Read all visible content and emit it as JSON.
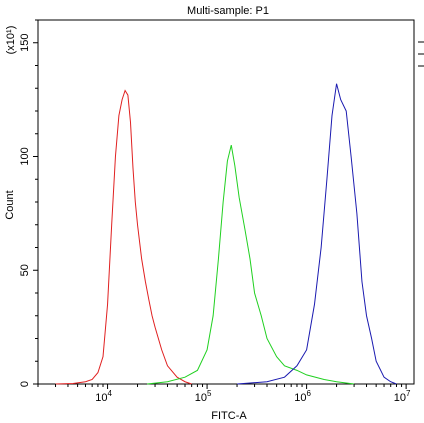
{
  "chart_data": {
    "type": "line",
    "title": "Multi-sample: P1",
    "xlabel": "FITC-A",
    "ylabel": "Count",
    "y_multiplier_label": "(x10¹)",
    "x_scale": "log",
    "xlim": [
      2000,
      12000000
    ],
    "ylim": [
      0,
      160
    ],
    "x_ticks": [
      {
        "value": 10000,
        "base": "10",
        "exp": "4"
      },
      {
        "value": 100000,
        "base": "10",
        "exp": "5"
      },
      {
        "value": 1000000,
        "base": "10",
        "exp": "6"
      },
      {
        "value": 10000000,
        "base": "10",
        "exp": "7"
      }
    ],
    "y_ticks": [
      {
        "value": 0,
        "label": "0"
      },
      {
        "value": 50,
        "label": "50"
      },
      {
        "value": 100,
        "label": "100"
      },
      {
        "value": 150,
        "label": "150"
      }
    ],
    "grid": false,
    "legend": "top-right",
    "series": [
      {
        "color": "#e02020",
        "x": [
          3000,
          4500,
          6000,
          7000,
          8000,
          9000,
          10000,
          11000,
          12000,
          13000,
          14000,
          15000,
          16000,
          17000,
          18000,
          19000,
          20000,
          22000,
          24000,
          26000,
          28000,
          30000,
          35000,
          40000,
          50000,
          60000,
          70000
        ],
        "y": [
          0,
          0.2,
          1,
          2,
          5,
          12,
          35,
          70,
          100,
          118,
          125,
          129,
          127,
          115,
          95,
          80,
          70,
          55,
          45,
          37,
          30,
          25,
          15,
          8,
          3,
          1,
          0
        ]
      },
      {
        "color": "#20d020",
        "x": [
          25000,
          40000,
          60000,
          80000,
          100000,
          115000,
          130000,
          145000,
          160000,
          175000,
          190000,
          210000,
          240000,
          270000,
          300000,
          350000,
          400000,
          500000,
          600000,
          800000,
          1000000,
          1500000,
          2000000,
          3000000
        ],
        "y": [
          0,
          1,
          3,
          6,
          15,
          30,
          55,
          80,
          98,
          105,
          96,
          82,
          68,
          55,
          40,
          30,
          20,
          12,
          8,
          6,
          4,
          2,
          1,
          0
        ]
      },
      {
        "color": "#1a1ab0",
        "x": [
          200000,
          400000,
          600000,
          800000,
          1000000,
          1200000,
          1400000,
          1600000,
          1800000,
          2000000,
          2200000,
          2500000,
          2800000,
          3200000,
          3600000,
          4000000,
          4500000,
          5000000,
          6000000,
          7000000,
          8000000
        ],
        "y": [
          0,
          1,
          3,
          8,
          15,
          35,
          60,
          90,
          118,
          132,
          125,
          120,
          100,
          75,
          45,
          30,
          20,
          10,
          3,
          1,
          0
        ]
      }
    ]
  }
}
